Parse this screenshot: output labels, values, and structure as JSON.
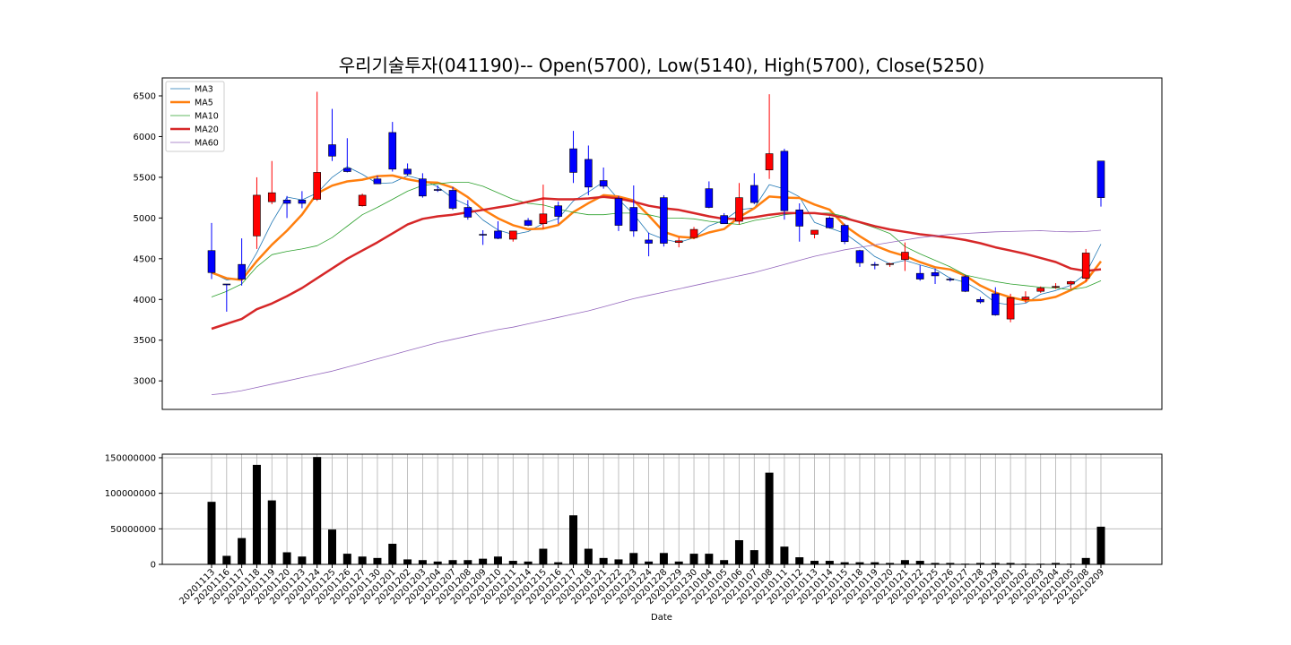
{
  "chart_data": [
    {
      "type": "candlestick",
      "title": "우리기술투자(041190)-- Open(5700), Low(5140), High(5700), Close(5250)",
      "ylim": [
        2650,
        6720
      ],
      "yticks": [
        3000,
        3500,
        4000,
        4500,
        5000,
        5500,
        6000,
        6500
      ],
      "grid": false,
      "legend_position": "top-left",
      "colors": {
        "up": "#ff0000",
        "down": "#0000ff"
      },
      "series_colors": {
        "MA3": "#1f77b4",
        "MA5": "#ff7f0e",
        "MA10": "#2ca02c",
        "MA20": "#d62728",
        "MA60": "#9467bd"
      },
      "dates": [
        "20201113",
        "20201116",
        "20201117",
        "20201118",
        "20201119",
        "20201120",
        "20201123",
        "20201124",
        "20201125",
        "20201126",
        "20201127",
        "20201130",
        "20201201",
        "20201202",
        "20201203",
        "20201204",
        "20201207",
        "20201208",
        "20201209",
        "20201210",
        "20201211",
        "20201214",
        "20201215",
        "20201216",
        "20201217",
        "20201218",
        "20201221",
        "20201222",
        "20201223",
        "20201224",
        "20201228",
        "20201229",
        "20201230",
        "20210104",
        "20210105",
        "20210106",
        "20210107",
        "20210108",
        "20210111",
        "20210112",
        "20210113",
        "20210114",
        "20210115",
        "20210118",
        "20210119",
        "20210120",
        "20210121",
        "20210122",
        "20210125",
        "20210126",
        "20210127",
        "20210128",
        "20210129",
        "20210201",
        "20210202",
        "20210203",
        "20210204",
        "20210205",
        "20210208",
        "20210209"
      ],
      "open": [
        4600,
        4190,
        4430,
        4780,
        5200,
        5220,
        5220,
        5230,
        5900,
        5610,
        5150,
        5480,
        6050,
        5600,
        5480,
        5350,
        5340,
        5130,
        4800,
        4840,
        4740,
        4970,
        4930,
        5150,
        5850,
        5720,
        5460,
        5240,
        5130,
        4730,
        5250,
        4700,
        4760,
        5360,
        5030,
        4960,
        5400,
        5590,
        5820,
        5100,
        4800,
        5000,
        4910,
        4600,
        4430,
        4430,
        4490,
        4320,
        4330,
        4250,
        4280,
        4000,
        4070,
        3760,
        4000,
        4100,
        4150,
        4190,
        4260,
        5700
      ],
      "high": [
        4940,
        4190,
        4750,
        5500,
        5700,
        5270,
        5330,
        6550,
        6340,
        5980,
        5300,
        5520,
        6180,
        5670,
        5550,
        5400,
        5380,
        5220,
        4850,
        4960,
        4800,
        5000,
        5410,
        5200,
        6070,
        5890,
        5620,
        5270,
        5400,
        4820,
        5280,
        4760,
        4890,
        5450,
        5060,
        5430,
        5550,
        6520,
        5850,
        5180,
        4850,
        5020,
        4930,
        4610,
        4460,
        4450,
        4700,
        4420,
        4380,
        4270,
        4300,
        4030,
        4150,
        4070,
        4100,
        4160,
        4200,
        4230,
        4620,
        5700
      ],
      "low": [
        4250,
        3850,
        4170,
        4620,
        5170,
        5000,
        5120,
        5210,
        5700,
        5560,
        5140,
        5420,
        5570,
        5520,
        5250,
        5320,
        5100,
        4980,
        4670,
        4740,
        4710,
        4900,
        4870,
        4930,
        5430,
        5280,
        5360,
        4840,
        4770,
        4530,
        4650,
        4640,
        4740,
        5120,
        4930,
        4920,
        5170,
        5480,
        4980,
        4710,
        4750,
        4870,
        4680,
        4400,
        4370,
        4400,
        4350,
        4230,
        4190,
        4220,
        4090,
        3950,
        3800,
        3720,
        3960,
        4080,
        4130,
        4130,
        4220,
        5140
      ],
      "close": [
        4330,
        4190,
        4250,
        5280,
        5310,
        5180,
        5180,
        5560,
        5760,
        5570,
        5280,
        5420,
        5600,
        5540,
        5270,
        5340,
        5120,
        5010,
        4800,
        4750,
        4840,
        4910,
        5050,
        5020,
        5560,
        5380,
        5390,
        4910,
        4840,
        4690,
        4690,
        4720,
        4860,
        5130,
        4930,
        5250,
        5190,
        5790,
        5090,
        4900,
        4850,
        4880,
        4710,
        4450,
        4420,
        4440,
        4580,
        4250,
        4290,
        4240,
        4100,
        3970,
        3810,
        4020,
        4030,
        4140,
        4160,
        4220,
        4570,
        5250
      ],
      "series": [
        {
          "name": "MA3",
          "values": [
            4330,
            4240,
            4257,
            4573,
            4947,
            5257,
            5223,
            5307,
            5500,
            5630,
            5537,
            5423,
            5433,
            5520,
            5470,
            5383,
            5243,
            5157,
            4977,
            4853,
            4797,
            4833,
            4933,
            4993,
            5210,
            5320,
            5443,
            5227,
            5047,
            4813,
            4740,
            4700,
            4757,
            4903,
            4973,
            5103,
            5123,
            5410,
            5357,
            5260,
            4947,
            4877,
            4813,
            4680,
            4527,
            4437,
            4480,
            4423,
            4373,
            4260,
            4210,
            4103,
            3960,
            3933,
            3953,
            4063,
            4110,
            4173,
            4317,
            4680
          ]
        },
        {
          "name": "MA5",
          "values": [
            4330,
            4260,
            4240,
            4470,
            4672,
            4844,
            5042,
            5302,
            5398,
            5450,
            5470,
            5514,
            5522,
            5476,
            5442,
            5434,
            5374,
            5256,
            5106,
            4996,
            4912,
            4862,
            4870,
            4914,
            5072,
            5182,
            5280,
            5264,
            5216,
            5030,
            4830,
            4770,
            4756,
            4822,
            4864,
            5012,
            5120,
            5264,
            5250,
            5246,
            5166,
            5102,
            4906,
            4776,
            4662,
            4588,
            4534,
            4458,
            4396,
            4368,
            4292,
            4170,
            4084,
            4026,
            3986,
            3994,
            4032,
            4114,
            4224,
            4468
          ]
        },
        {
          "name": "MA10",
          "values": [
            4030,
            4100,
            4190,
            4400,
            4550,
            4590,
            4620,
            4660,
            4760,
            4900,
            5040,
            5130,
            5230,
            5330,
            5400,
            5420,
            5440,
            5440,
            5390,
            5310,
            5230,
            5180,
            5160,
            5110,
            5070,
            5040,
            5040,
            5060,
            5060,
            5040,
            5000,
            5000,
            4990,
            4960,
            4940,
            4920,
            4970,
            5000,
            5040,
            5060,
            5060,
            5060,
            5020,
            4940,
            4880,
            4810,
            4650,
            4560,
            4480,
            4400,
            4300,
            4260,
            4220,
            4190,
            4170,
            4150,
            4140,
            4120,
            4150,
            4230
          ]
        },
        {
          "name": "MA20",
          "values": [
            3640,
            3700,
            3760,
            3880,
            3950,
            4040,
            4140,
            4260,
            4380,
            4500,
            4600,
            4700,
            4810,
            4920,
            4990,
            5020,
            5040,
            5070,
            5100,
            5130,
            5160,
            5200,
            5240,
            5230,
            5230,
            5240,
            5260,
            5240,
            5200,
            5150,
            5120,
            5100,
            5060,
            5020,
            4990,
            4990,
            5010,
            5040,
            5060,
            5060,
            5060,
            5040,
            5000,
            4950,
            4900,
            4860,
            4830,
            4800,
            4780,
            4760,
            4730,
            4690,
            4640,
            4600,
            4560,
            4510,
            4460,
            4380,
            4350,
            4370
          ]
        },
        {
          "name": "MA60",
          "values": [
            2830,
            2850,
            2880,
            2920,
            2960,
            3000,
            3040,
            3080,
            3120,
            3170,
            3220,
            3270,
            3320,
            3370,
            3420,
            3470,
            3510,
            3550,
            3590,
            3630,
            3660,
            3700,
            3740,
            3780,
            3820,
            3860,
            3910,
            3960,
            4010,
            4050,
            4090,
            4130,
            4170,
            4210,
            4250,
            4290,
            4330,
            4380,
            4430,
            4480,
            4530,
            4570,
            4610,
            4640,
            4670,
            4700,
            4730,
            4760,
            4780,
            4800,
            4810,
            4820,
            4830,
            4835,
            4840,
            4845,
            4835,
            4830,
            4835,
            4850
          ]
        }
      ]
    },
    {
      "type": "bar",
      "xlabel": "Date",
      "ylim": [
        0,
        155000000
      ],
      "yticks": [
        0,
        50000000,
        100000000,
        150000000
      ],
      "ytick_labels": [
        "0",
        "50000000",
        "100000000",
        "150000000"
      ],
      "grid": true,
      "bar_color": "#000000",
      "volume": [
        88000000,
        12000000,
        37000000,
        140000000,
        90000000,
        17000000,
        11000000,
        151000000,
        49000000,
        15000000,
        11000000,
        9000000,
        29000000,
        7000000,
        6000000,
        4000000,
        6000000,
        6000000,
        8000000,
        11000000,
        5000000,
        4000000,
        22000000,
        3000000,
        69000000,
        22000000,
        9000000,
        7000000,
        16000000,
        4000000,
        16000000,
        4000000,
        15000000,
        15000000,
        6000000,
        34000000,
        20000000,
        129000000,
        25000000,
        10000000,
        5000000,
        5000000,
        3000000,
        3000000,
        3000000,
        2000000,
        6000000,
        5000000,
        2000000,
        2000000,
        1000000,
        2000000,
        2000000,
        2000000,
        1000000,
        1000000,
        2000000,
        1000000,
        9000000,
        53000000
      ]
    }
  ]
}
